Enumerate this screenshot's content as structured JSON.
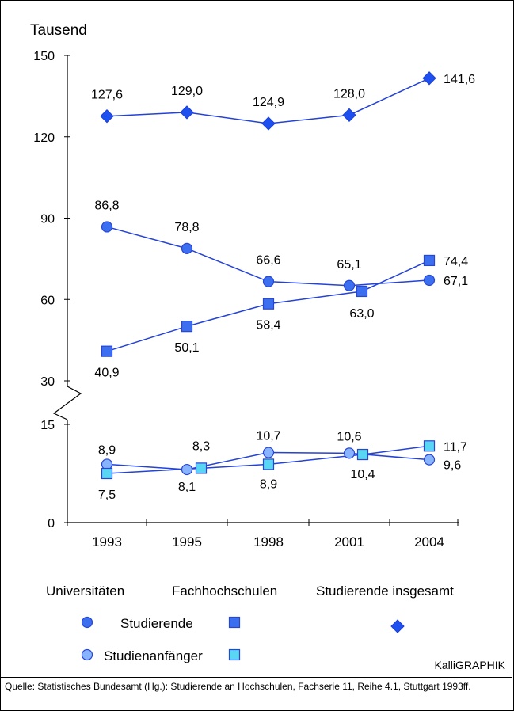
{
  "chart_data": {
    "type": "line",
    "ylabel": "Tausend",
    "x": [
      "1993",
      "1995",
      "1998",
      "2001",
      "2004"
    ],
    "y_axis": {
      "broken": true,
      "upper_ticks": [
        "150",
        "120",
        "90",
        "60",
        "30"
      ],
      "upper_range": [
        30,
        150
      ],
      "lower_ticks": [
        "15",
        "0"
      ],
      "lower_range": [
        0,
        15
      ]
    },
    "series": [
      {
        "name": "Studierende insgesamt",
        "marker": "diamond",
        "color": "#1e50f0",
        "values": [
          127.6,
          129.0,
          124.9,
          128.0,
          141.6
        ],
        "labels": [
          "127,6",
          "129,0",
          "124,9",
          "128,0",
          "141,6"
        ]
      },
      {
        "name": "Universitäten – Studierende",
        "marker": "circle",
        "color": "#3c6ef0",
        "values": [
          86.8,
          78.8,
          66.6,
          65.1,
          67.1
        ],
        "labels": [
          "86,8",
          "78,8",
          "66,6",
          "65,1",
          "67,1"
        ]
      },
      {
        "name": "Fachhochschulen – Studierende",
        "marker": "square",
        "color": "#3c6ef0",
        "values": [
          40.9,
          50.1,
          58.4,
          63.0,
          74.4
        ],
        "labels": [
          "40,9",
          "50,1",
          "58,4",
          "63,0",
          "74,4"
        ]
      },
      {
        "name": "Universitäten – Studienanfänger",
        "marker": "circle",
        "color": "#88b4ff",
        "values": [
          8.9,
          8.1,
          10.7,
          10.6,
          9.6
        ],
        "labels": [
          "8,9",
          "8,1",
          "10,7",
          "10,6",
          "9,6"
        ]
      },
      {
        "name": "Fachhochschulen – Studienanfänger",
        "marker": "square",
        "color": "#5ad6f5",
        "values": [
          7.5,
          8.3,
          8.9,
          10.4,
          11.7
        ],
        "labels": [
          "7,5",
          "8,3",
          "8,9",
          "10,4",
          "11,7"
        ]
      }
    ],
    "legend": {
      "placement": "bottom",
      "group_headers": [
        "Universitäten",
        "Fachhochschulen",
        "Studierende insgesamt"
      ],
      "row_labels": [
        "Studierende",
        "Studienanfänger"
      ]
    },
    "grid": false
  },
  "credit": "KalliGRAPHIK",
  "source": "Quelle: Statistisches Bundesamt (Hg.): Studierende an Hochschulen, Fachserie 11, Reihe 4.1, Stuttgart 1993ff."
}
